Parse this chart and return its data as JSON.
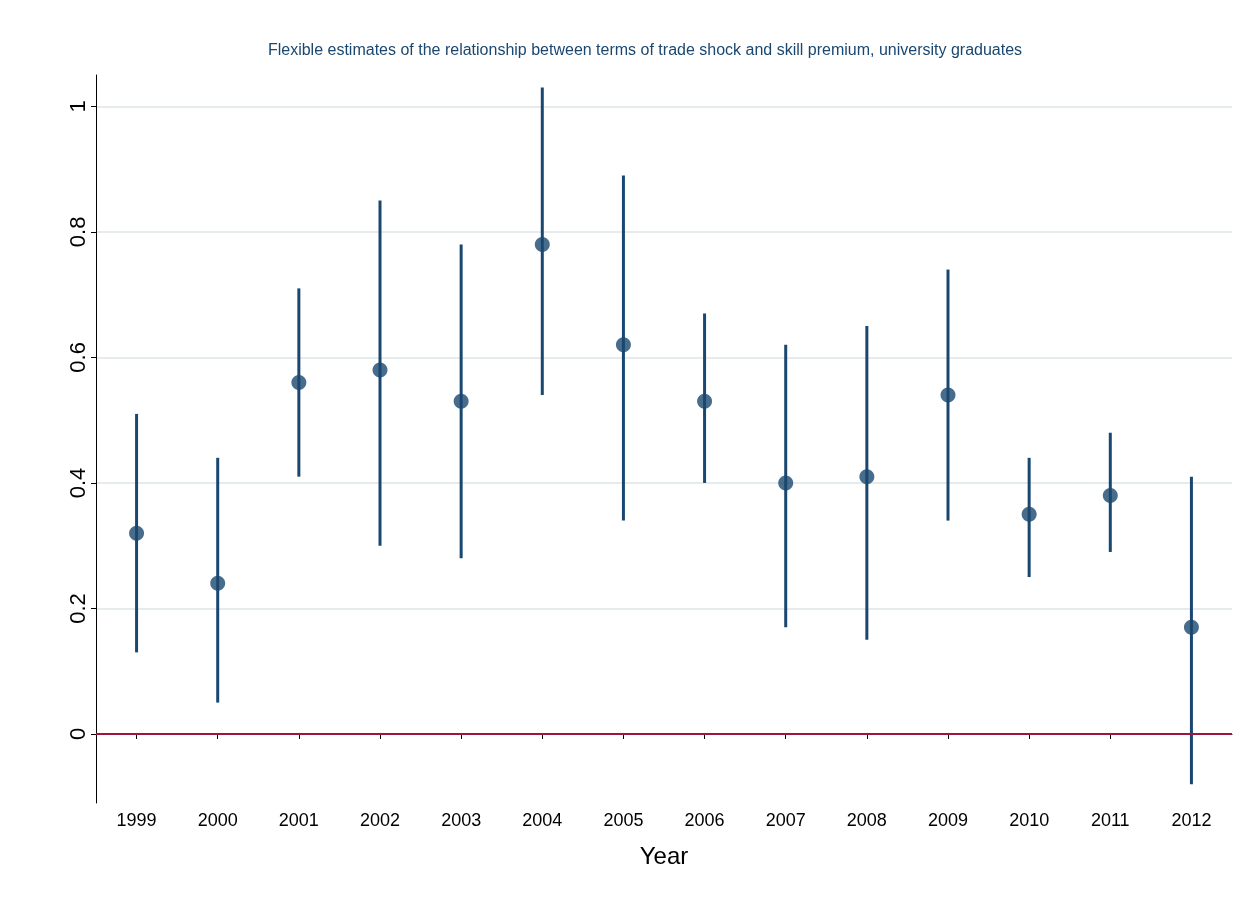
{
  "chart_data": {
    "type": "scatter",
    "title": "Flexible estimates of the relationship between terms of trade shock and skill premium, university graduates",
    "xlabel": "Year",
    "categories": [
      "1999",
      "2000",
      "2001",
      "2002",
      "2003",
      "2004",
      "2005",
      "2006",
      "2007",
      "2008",
      "2009",
      "2010",
      "2011",
      "2012"
    ],
    "values": [
      0.32,
      0.24,
      0.56,
      0.58,
      0.53,
      0.78,
      0.62,
      0.53,
      0.4,
      0.41,
      0.54,
      0.35,
      0.38,
      0.17
    ],
    "errors": [
      [
        0.13,
        0.51
      ],
      [
        0.05,
        0.44
      ],
      [
        0.41,
        0.71
      ],
      [
        0.3,
        0.85
      ],
      [
        0.28,
        0.78
      ],
      [
        0.54,
        1.03
      ],
      [
        0.34,
        0.89
      ],
      [
        0.4,
        0.67
      ],
      [
        0.17,
        0.62
      ],
      [
        0.15,
        0.65
      ],
      [
        0.34,
        0.74
      ],
      [
        0.25,
        0.44
      ],
      [
        0.29,
        0.48
      ],
      [
        -0.08,
        0.41
      ]
    ],
    "color": "#1a476f",
    "marker": "circle",
    "ylim": [
      -0.11,
      1.05
    ],
    "yticks": [
      0,
      0.2,
      0.4,
      0.6,
      0.8,
      1
    ],
    "ref_lines": [
      {
        "axis": "y",
        "value": 0,
        "color": "#a0153e"
      }
    ],
    "grid": "y"
  }
}
